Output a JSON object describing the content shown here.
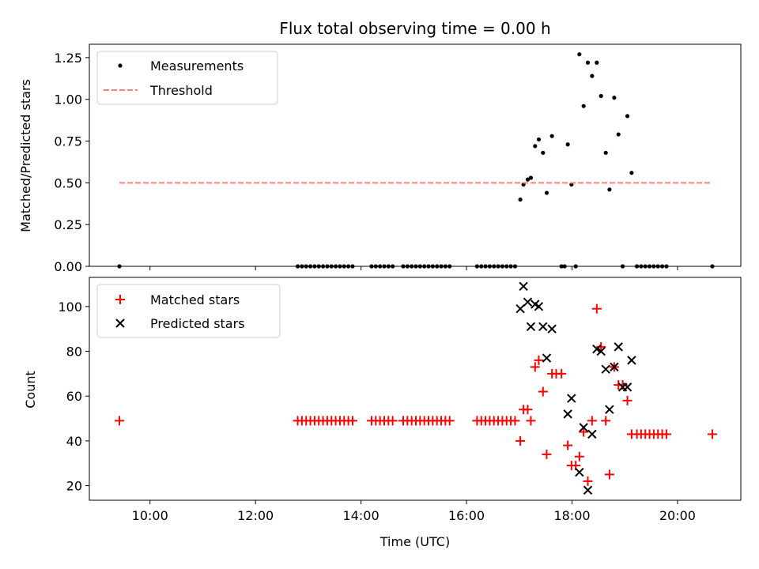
{
  "chart_data": [
    {
      "type": "scatter",
      "title": "Flux total observing time = 0.00 h",
      "xlabel": "",
      "ylabel": "Matched/Predicted stars",
      "xlim": [
        8.85,
        21.2
      ],
      "ylim": [
        0,
        1.33
      ],
      "yticks": [
        0,
        0.25,
        0.5,
        0.75,
        1.0,
        1.25
      ],
      "ytick_labels": [
        "0.00",
        "0.25",
        "0.50",
        "0.75",
        "1.00",
        "1.25"
      ],
      "xticks": [
        10,
        12,
        14,
        16,
        18,
        20
      ],
      "legend": {
        "position": "top-left",
        "entries": [
          "Measurements",
          "Threshold"
        ]
      },
      "series": [
        {
          "name": "Measurements",
          "marker": "dot",
          "color": "#000000",
          "points": [
            [
              9.42,
              0
            ],
            [
              12.8,
              0
            ],
            [
              12.88,
              0
            ],
            [
              12.96,
              0
            ],
            [
              13.04,
              0
            ],
            [
              13.12,
              0
            ],
            [
              13.2,
              0
            ],
            [
              13.28,
              0
            ],
            [
              13.36,
              0
            ],
            [
              13.44,
              0
            ],
            [
              13.52,
              0
            ],
            [
              13.6,
              0
            ],
            [
              13.68,
              0
            ],
            [
              13.76,
              0
            ],
            [
              13.84,
              0
            ],
            [
              14.2,
              0
            ],
            [
              14.28,
              0
            ],
            [
              14.36,
              0
            ],
            [
              14.44,
              0
            ],
            [
              14.52,
              0
            ],
            [
              14.6,
              0
            ],
            [
              14.8,
              0
            ],
            [
              14.88,
              0
            ],
            [
              14.96,
              0
            ],
            [
              15.04,
              0
            ],
            [
              15.12,
              0
            ],
            [
              15.2,
              0
            ],
            [
              15.28,
              0
            ],
            [
              15.36,
              0
            ],
            [
              15.44,
              0
            ],
            [
              15.52,
              0
            ],
            [
              15.6,
              0
            ],
            [
              15.68,
              0
            ],
            [
              16.2,
              0
            ],
            [
              16.28,
              0
            ],
            [
              16.36,
              0
            ],
            [
              16.44,
              0
            ],
            [
              16.52,
              0
            ],
            [
              16.6,
              0
            ],
            [
              16.68,
              0
            ],
            [
              16.76,
              0
            ],
            [
              16.84,
              0
            ],
            [
              16.92,
              0
            ],
            [
              17.02,
              0.4
            ],
            [
              17.08,
              0.49
            ],
            [
              17.16,
              0.52
            ],
            [
              17.22,
              0.53
            ],
            [
              17.3,
              0.72
            ],
            [
              17.37,
              0.76
            ],
            [
              17.45,
              0.68
            ],
            [
              17.52,
              0.44
            ],
            [
              17.62,
              0.78
            ],
            [
              17.8,
              0
            ],
            [
              17.86,
              0
            ],
            [
              17.92,
              0.73
            ],
            [
              17.99,
              0.49
            ],
            [
              18.07,
              0
            ],
            [
              18.14,
              1.27
            ],
            [
              18.22,
              0.96
            ],
            [
              18.3,
              1.22
            ],
            [
              18.38,
              1.14
            ],
            [
              18.47,
              1.22
            ],
            [
              18.55,
              1.02
            ],
            [
              18.64,
              0.68
            ],
            [
              18.71,
              0.46
            ],
            [
              18.8,
              1.01
            ],
            [
              18.88,
              0.79
            ],
            [
              18.96,
              0
            ],
            [
              19.05,
              0.9
            ],
            [
              19.13,
              0.56
            ],
            [
              19.23,
              0
            ],
            [
              19.31,
              0
            ],
            [
              19.39,
              0
            ],
            [
              19.47,
              0
            ],
            [
              19.55,
              0
            ],
            [
              19.63,
              0
            ],
            [
              19.71,
              0
            ],
            [
              19.79,
              0
            ],
            [
              20.66,
              0
            ]
          ]
        },
        {
          "name": "Threshold",
          "style": "dashed",
          "color": "#ff7f7f",
          "x": [
            9.42,
            20.66
          ],
          "y": [
            0.5,
            0.5
          ]
        }
      ]
    },
    {
      "type": "scatter",
      "title": "",
      "xlabel": "Time (UTC)",
      "ylabel": "Count",
      "xlim": [
        8.85,
        21.2
      ],
      "ylim": [
        13.5,
        113
      ],
      "yticks": [
        20,
        40,
        60,
        80,
        100
      ],
      "ytick_labels": [
        "20",
        "40",
        "60",
        "80",
        "100"
      ],
      "xticks": [
        10,
        12,
        14,
        16,
        18,
        20
      ],
      "xtick_labels": [
        "10:00",
        "12:00",
        "14:00",
        "16:00",
        "18:00",
        "20:00"
      ],
      "legend": {
        "position": "top-left",
        "entries": [
          "Matched stars",
          "Predicted stars"
        ]
      },
      "series": [
        {
          "name": "Matched stars",
          "marker": "plus",
          "color": "#ff0000",
          "points": [
            [
              9.42,
              49
            ],
            [
              12.8,
              49
            ],
            [
              12.88,
              49
            ],
            [
              12.96,
              49
            ],
            [
              13.04,
              49
            ],
            [
              13.12,
              49
            ],
            [
              13.2,
              49
            ],
            [
              13.28,
              49
            ],
            [
              13.36,
              49
            ],
            [
              13.44,
              49
            ],
            [
              13.52,
              49
            ],
            [
              13.6,
              49
            ],
            [
              13.68,
              49
            ],
            [
              13.76,
              49
            ],
            [
              13.84,
              49
            ],
            [
              14.2,
              49
            ],
            [
              14.28,
              49
            ],
            [
              14.36,
              49
            ],
            [
              14.44,
              49
            ],
            [
              14.52,
              49
            ],
            [
              14.6,
              49
            ],
            [
              14.8,
              49
            ],
            [
              14.88,
              49
            ],
            [
              14.96,
              49
            ],
            [
              15.04,
              49
            ],
            [
              15.12,
              49
            ],
            [
              15.2,
              49
            ],
            [
              15.28,
              49
            ],
            [
              15.36,
              49
            ],
            [
              15.44,
              49
            ],
            [
              15.52,
              49
            ],
            [
              15.6,
              49
            ],
            [
              15.68,
              49
            ],
            [
              16.2,
              49
            ],
            [
              16.28,
              49
            ],
            [
              16.36,
              49
            ],
            [
              16.44,
              49
            ],
            [
              16.52,
              49
            ],
            [
              16.6,
              49
            ],
            [
              16.68,
              49
            ],
            [
              16.76,
              49
            ],
            [
              16.84,
              49
            ],
            [
              16.92,
              49
            ],
            [
              17.02,
              40
            ],
            [
              17.08,
              54
            ],
            [
              17.16,
              54
            ],
            [
              17.22,
              49
            ],
            [
              17.3,
              73
            ],
            [
              17.37,
              76
            ],
            [
              17.45,
              62
            ],
            [
              17.52,
              34
            ],
            [
              17.62,
              70
            ],
            [
              17.7,
              70
            ],
            [
              17.8,
              70
            ],
            [
              17.92,
              38
            ],
            [
              17.99,
              29
            ],
            [
              18.07,
              29
            ],
            [
              18.14,
              33
            ],
            [
              18.22,
              44
            ],
            [
              18.3,
              22
            ],
            [
              18.38,
              49
            ],
            [
              18.47,
              99
            ],
            [
              18.55,
              82
            ],
            [
              18.64,
              49
            ],
            [
              18.71,
              25
            ],
            [
              18.8,
              73
            ],
            [
              18.88,
              65
            ],
            [
              18.96,
              65
            ],
            [
              19.05,
              58
            ],
            [
              19.13,
              43
            ],
            [
              19.23,
              43
            ],
            [
              19.31,
              43
            ],
            [
              19.39,
              43
            ],
            [
              19.47,
              43
            ],
            [
              19.55,
              43
            ],
            [
              19.63,
              43
            ],
            [
              19.71,
              43
            ],
            [
              19.79,
              43
            ],
            [
              20.66,
              43
            ]
          ]
        },
        {
          "name": "Predicted stars",
          "marker": "x",
          "color": "#000000",
          "points": [
            [
              17.02,
              99
            ],
            [
              17.08,
              109
            ],
            [
              17.16,
              102
            ],
            [
              17.22,
              91
            ],
            [
              17.3,
              101
            ],
            [
              17.37,
              100
            ],
            [
              17.45,
              91
            ],
            [
              17.52,
              77
            ],
            [
              17.62,
              90
            ],
            [
              17.92,
              52
            ],
            [
              17.99,
              59
            ],
            [
              18.14,
              26
            ],
            [
              18.22,
              46
            ],
            [
              18.3,
              18
            ],
            [
              18.38,
              43
            ],
            [
              18.47,
              81
            ],
            [
              18.55,
              80
            ],
            [
              18.64,
              72
            ],
            [
              18.71,
              54
            ],
            [
              18.8,
              73
            ],
            [
              18.88,
              82
            ],
            [
              18.96,
              64
            ],
            [
              19.05,
              64
            ],
            [
              19.13,
              76
            ]
          ]
        }
      ]
    }
  ]
}
